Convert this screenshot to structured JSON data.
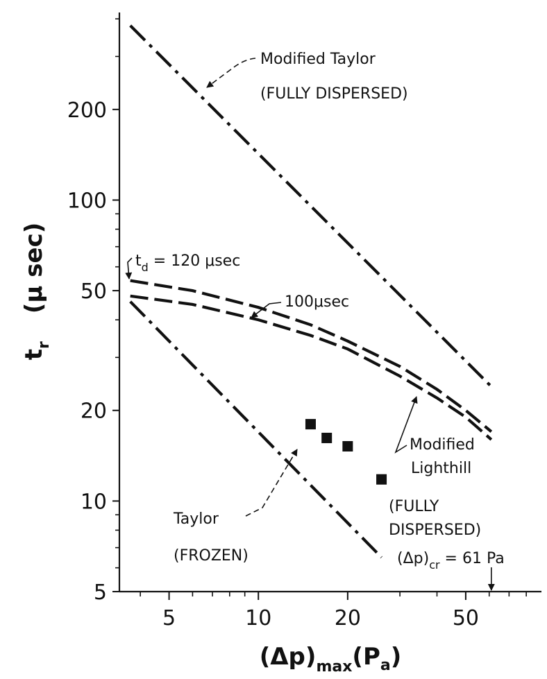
{
  "chart_data": {
    "type": "line",
    "xlabel": "(Δp)max (Pa)",
    "ylabel": "tr (μsec)",
    "xscale": "log",
    "yscale": "log",
    "xlim": [
      3.4,
      90
    ],
    "ylim": [
      5,
      420
    ],
    "x_ticks": [
      5,
      10,
      20,
      50
    ],
    "x_tick_labels": [
      "5",
      "10",
      "20",
      "50"
    ],
    "y_ticks": [
      5,
      10,
      20,
      50,
      100,
      200
    ],
    "y_tick_labels": [
      "5",
      "10",
      "20",
      "50",
      "100",
      "200"
    ],
    "grid": false,
    "series": [
      {
        "name": "Modified Taylor (FULLY DISPERSED)",
        "style": "dash-dot",
        "x": [
          3.7,
          61
        ],
        "y": [
          380,
          24
        ]
      },
      {
        "name": "Taylor (FROZEN)",
        "style": "dash-dot",
        "x": [
          3.7,
          26
        ],
        "y": [
          46,
          6.5
        ]
      },
      {
        "name": "td = 120 μsec",
        "style": "dashed",
        "x": [
          3.7,
          6,
          10,
          15,
          20,
          30,
          40,
          50,
          61
        ],
        "y": [
          54,
          50,
          44,
          38.5,
          34,
          28,
          23.5,
          20,
          17
        ]
      },
      {
        "name": "100 μsec",
        "style": "dashed",
        "x": [
          3.7,
          6,
          10,
          15,
          20,
          30,
          40,
          50,
          61
        ],
        "y": [
          48,
          45,
          40,
          35.5,
          32,
          26,
          22,
          19,
          16
        ]
      },
      {
        "name": "data",
        "style": "square-markers",
        "x": [
          15,
          17,
          20,
          26
        ],
        "y": [
          18,
          16.2,
          15.2,
          11.8
        ]
      }
    ],
    "annotations": {
      "modified_taylor": "Modified Taylor",
      "modified_taylor_sub": "(FULLY DISPERSED)",
      "td_prefix": "t",
      "td_sub": "d",
      "td_value": " = 120 μsec",
      "hundred": "100μsec",
      "modified_lighthill_1": "Modified",
      "modified_lighthill_2": "Lighthill",
      "fully_1": "(FULLY",
      "fully_2": "DISPERSED)",
      "taylor": "Taylor",
      "frozen": "(FROZEN)",
      "critical_prefix": "(Δp)",
      "critical_sub": "cr",
      "critical_value": " = 61 Pa",
      "critical_x": 61
    },
    "x_title_main": "(Δp)",
    "x_title_sub": "max",
    "x_title_unit": "(P",
    "x_title_unit_sub": "a",
    "x_title_close": ")",
    "y_title_main": "t",
    "y_title_sub": "r",
    "y_title_unit": "(μ sec)"
  }
}
